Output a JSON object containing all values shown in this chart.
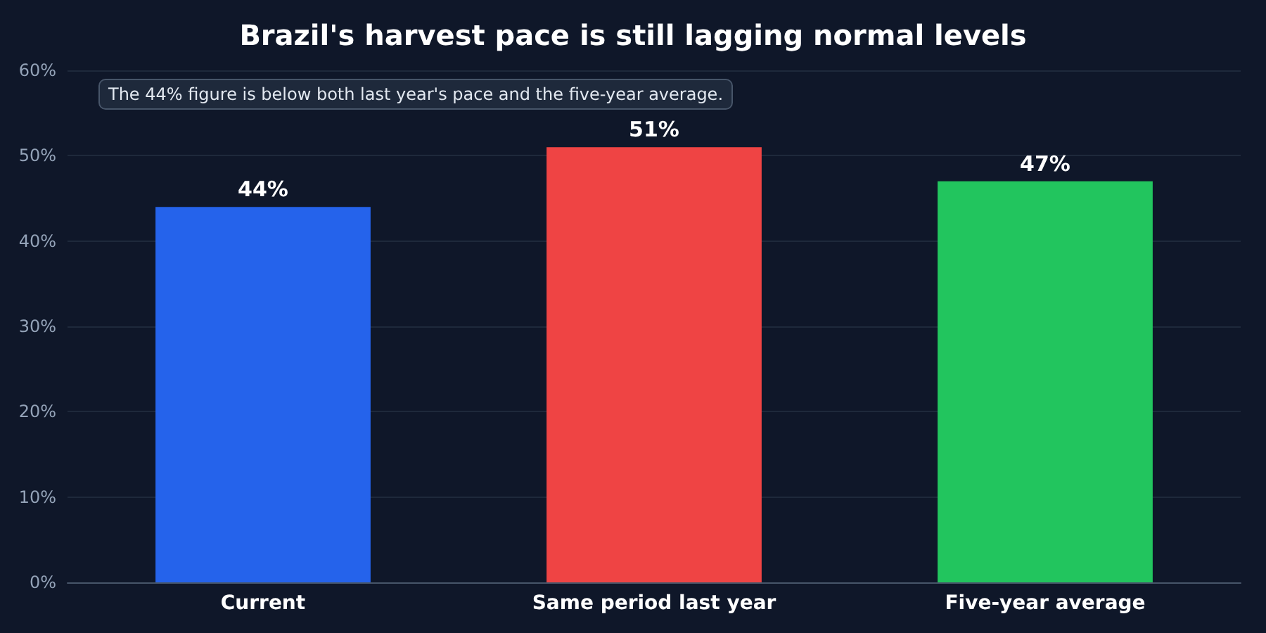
{
  "chart_data": {
    "type": "bar",
    "title": "Brazil's harvest pace is still lagging normal levels",
    "categories": [
      "Current",
      "Same period last year",
      "Five-year average"
    ],
    "values": [
      44,
      51,
      47
    ],
    "colors": [
      "#2563eb",
      "#ef4444",
      "#22c55e"
    ],
    "value_labels": [
      "44%",
      "51%",
      "47%"
    ],
    "ylim": [
      0,
      60
    ],
    "yticks": [
      {
        "value": 0,
        "label": "0%"
      },
      {
        "value": 10,
        "label": "10%"
      },
      {
        "value": 20,
        "label": "20%"
      },
      {
        "value": 30,
        "label": "30%"
      },
      {
        "value": 40,
        "label": "40%"
      },
      {
        "value": 50,
        "label": "50%"
      },
      {
        "value": 60,
        "label": "60%"
      }
    ],
    "grid": "y",
    "annotations": [
      "The 44% figure is below both last year's pace and the five-year average."
    ]
  }
}
